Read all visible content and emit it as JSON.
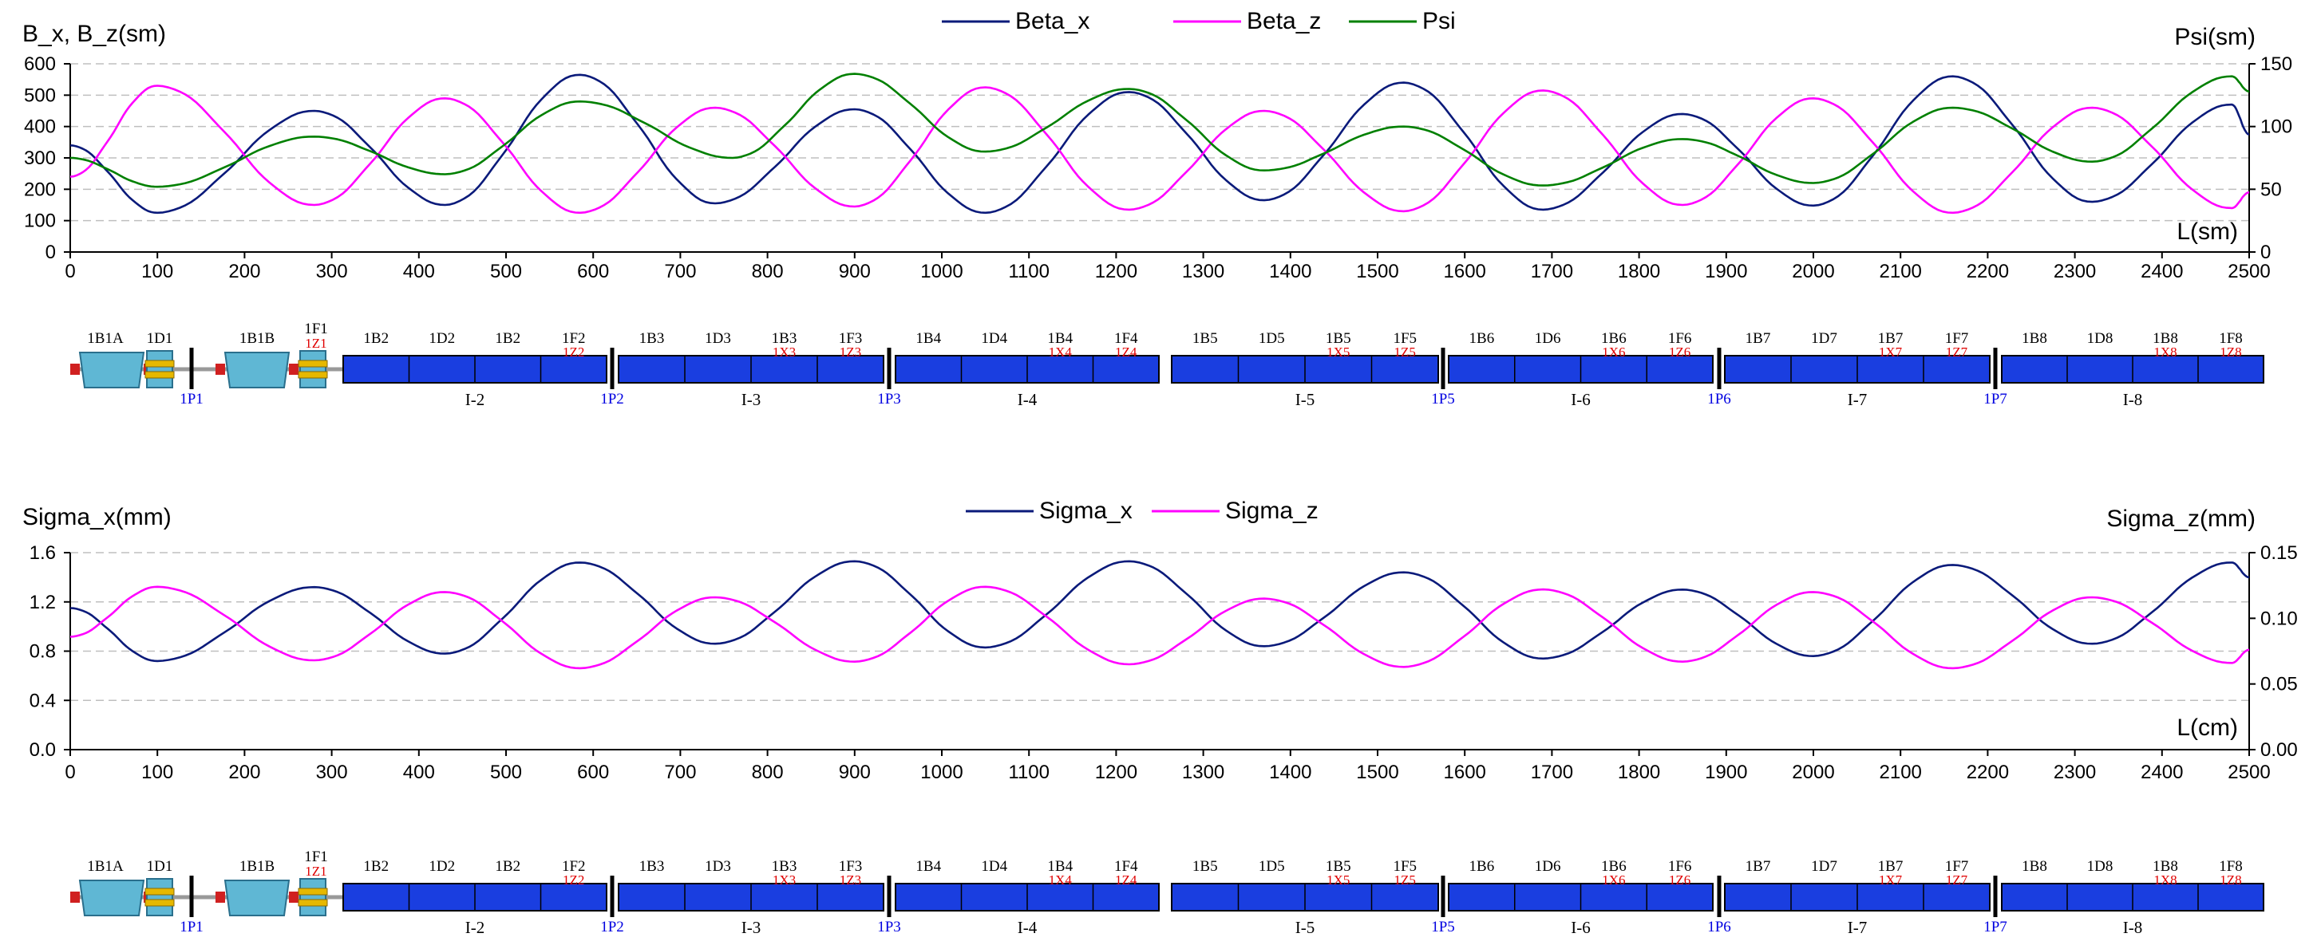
{
  "chart_data": [
    {
      "type": "line",
      "title": "",
      "ylabel": "B_x, B_z(sm)",
      "ylabel_right": "Psi(sm)",
      "xlabel": "L(sm)",
      "xlim": [
        0,
        2500
      ],
      "ylim": [
        0,
        600
      ],
      "ylim_right": [
        0,
        150
      ],
      "xticks": [
        "0",
        "100",
        "200",
        "300",
        "400",
        "500",
        "600",
        "700",
        "800",
        "900",
        "1000",
        "1100",
        "1200",
        "1300",
        "1400",
        "1500",
        "1600",
        "1700",
        "1800",
        "1900",
        "2000",
        "2100",
        "2200",
        "2300",
        "2400",
        "2500"
      ],
      "yticks": [
        "0",
        "100",
        "200",
        "300",
        "400",
        "500",
        "600"
      ],
      "yticks_right": [
        "0",
        "50",
        "100",
        "150"
      ],
      "grid": "horizontal dashed",
      "legend": "top-center",
      "series": [
        {
          "name": "Beta_x",
          "color": "#0a1a7a",
          "axis": "left",
          "points": [
            [
              0,
              340
            ],
            [
              100,
              125
            ],
            [
              280,
              450
            ],
            [
              430,
              150
            ],
            [
              585,
              565
            ],
            [
              740,
              155
            ],
            [
              900,
              455
            ],
            [
              1050,
              125
            ],
            [
              1215,
              510
            ],
            [
              1370,
              165
            ],
            [
              1530,
              540
            ],
            [
              1690,
              135
            ],
            [
              1850,
              440
            ],
            [
              2000,
              148
            ],
            [
              2160,
              560
            ],
            [
              2320,
              160
            ],
            [
              2480,
              470
            ],
            [
              2500,
              375
            ]
          ]
        },
        {
          "name": "Beta_z",
          "color": "#ff00ff",
          "axis": "left",
          "points": [
            [
              0,
              240
            ],
            [
              100,
              530
            ],
            [
              280,
              150
            ],
            [
              430,
              490
            ],
            [
              585,
              125
            ],
            [
              740,
              460
            ],
            [
              900,
              145
            ],
            [
              1050,
              525
            ],
            [
              1215,
              135
            ],
            [
              1370,
              450
            ],
            [
              1530,
              130
            ],
            [
              1690,
              515
            ],
            [
              1850,
              150
            ],
            [
              2000,
              490
            ],
            [
              2160,
              125
            ],
            [
              2320,
              460
            ],
            [
              2480,
              140
            ],
            [
              2500,
              190
            ]
          ]
        },
        {
          "name": "Psi",
          "color": "#008000",
          "axis": "right",
          "points": [
            [
              0,
              75
            ],
            [
              100,
              52
            ],
            [
              280,
              92
            ],
            [
              430,
              62
            ],
            [
              585,
              120
            ],
            [
              760,
              75
            ],
            [
              900,
              142
            ],
            [
              1050,
              80
            ],
            [
              1215,
              130
            ],
            [
              1370,
              65
            ],
            [
              1530,
              100
            ],
            [
              1690,
              53
            ],
            [
              1850,
              90
            ],
            [
              2000,
              55
            ],
            [
              2160,
              115
            ],
            [
              2320,
              72
            ],
            [
              2480,
              140
            ],
            [
              2500,
              128
            ]
          ]
        }
      ]
    },
    {
      "type": "line",
      "title": "",
      "ylabel": "Sigma_x(mm)",
      "ylabel_right": "Sigma_z(mm)",
      "xlabel": "L(cm)",
      "xlim": [
        0,
        2500
      ],
      "ylim": [
        0,
        1.6
      ],
      "ylim_right": [
        0,
        0.15
      ],
      "xticks": [
        "0",
        "100",
        "200",
        "300",
        "400",
        "500",
        "600",
        "700",
        "800",
        "900",
        "1000",
        "1100",
        "1200",
        "1300",
        "1400",
        "1500",
        "1600",
        "1700",
        "1800",
        "1900",
        "2000",
        "2100",
        "2200",
        "2300",
        "2400",
        "2500"
      ],
      "yticks": [
        "0.0",
        "0.4",
        "0.8",
        "1.2",
        "1.6"
      ],
      "yticks_right": [
        "0.00",
        "0.05",
        "0.10",
        "0.15"
      ],
      "grid": "horizontal dashed",
      "legend": "top-center",
      "series": [
        {
          "name": "Sigma_x",
          "color": "#0a1a7a",
          "axis": "left",
          "points": [
            [
              0,
              1.15
            ],
            [
              100,
              0.72
            ],
            [
              280,
              1.32
            ],
            [
              430,
              0.78
            ],
            [
              585,
              1.52
            ],
            [
              740,
              0.86
            ],
            [
              900,
              1.53
            ],
            [
              1050,
              0.83
            ],
            [
              1215,
              1.53
            ],
            [
              1370,
              0.84
            ],
            [
              1530,
              1.44
            ],
            [
              1690,
              0.74
            ],
            [
              1850,
              1.3
            ],
            [
              2000,
              0.76
            ],
            [
              2160,
              1.5
            ],
            [
              2320,
              0.86
            ],
            [
              2480,
              1.52
            ],
            [
              2500,
              1.4
            ]
          ]
        },
        {
          "name": "Sigma_z",
          "color": "#ff00ff",
          "axis": "right",
          "points": [
            [
              0,
              0.086
            ],
            [
              100,
              0.124
            ],
            [
              280,
              0.068
            ],
            [
              430,
              0.12
            ],
            [
              585,
              0.062
            ],
            [
              740,
              0.116
            ],
            [
              900,
              0.067
            ],
            [
              1050,
              0.124
            ],
            [
              1215,
              0.065
            ],
            [
              1370,
              0.115
            ],
            [
              1530,
              0.063
            ],
            [
              1690,
              0.122
            ],
            [
              1850,
              0.067
            ],
            [
              2000,
              0.12
            ],
            [
              2160,
              0.062
            ],
            [
              2320,
              0.116
            ],
            [
              2480,
              0.066
            ],
            [
              2500,
              0.076
            ]
          ]
        }
      ]
    }
  ],
  "lattice": {
    "left_magnets": [
      "1B1A",
      "1D1",
      "1B1B",
      "1F1"
    ],
    "left_red": "1Z1",
    "segments": [
      {
        "top": [
          "1B2",
          "1D2",
          "1B2",
          "1F2"
        ],
        "red": [
          "",
          "",
          "",
          "1Z2"
        ],
        "name": "I-2"
      },
      {
        "top": [
          "1B3",
          "1D3",
          "1B3",
          "1F3"
        ],
        "red": [
          "",
          "",
          "1X3",
          "1Z3"
        ],
        "name": "I-3"
      },
      {
        "top": [
          "1B4",
          "1D4",
          "1B4",
          "1F4"
        ],
        "red": [
          "",
          "",
          "1X4",
          "1Z4"
        ],
        "name": "I-4"
      },
      {
        "top": [
          "1B5",
          "1D5",
          "1B5",
          "1F5"
        ],
        "red": [
          "",
          "",
          "1X5",
          "1Z5"
        ],
        "name": "I-5"
      },
      {
        "top": [
          "1B6",
          "1D6",
          "1B6",
          "1F6"
        ],
        "red": [
          "",
          "",
          "1X6",
          "1Z6"
        ],
        "name": "I-6"
      },
      {
        "top": [
          "1B7",
          "1D7",
          "1B7",
          "1F7"
        ],
        "red": [
          "",
          "",
          "1X7",
          "1Z7"
        ],
        "name": "I-7"
      },
      {
        "top": [
          "1B8",
          "1D8",
          "1B8",
          "1F8"
        ],
        "red": [
          "",
          "",
          "1X8",
          "1Z8"
        ],
        "name": "I-8"
      }
    ],
    "pickups": [
      "1P1",
      "1P2",
      "1P3",
      "1P5",
      "1P6",
      "1P7"
    ]
  }
}
